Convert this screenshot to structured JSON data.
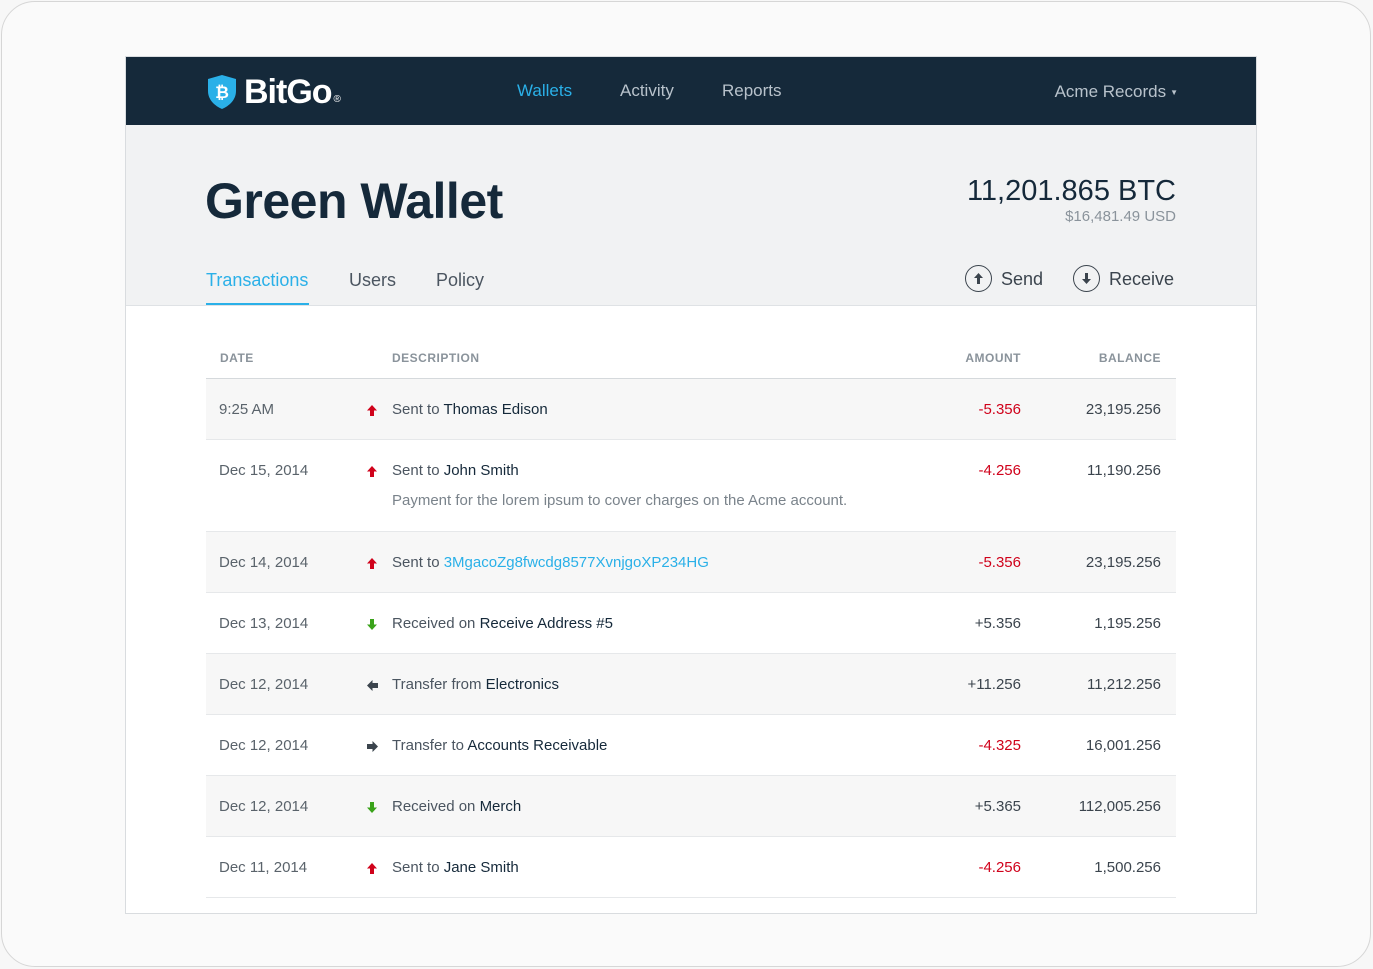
{
  "brand": {
    "name": "BitGo",
    "reg": "®"
  },
  "nav": {
    "items": [
      {
        "label": "Wallets",
        "active": true
      },
      {
        "label": "Activity",
        "active": false
      },
      {
        "label": "Reports",
        "active": false
      }
    ],
    "account": "Acme Records"
  },
  "wallet": {
    "title": "Green Wallet",
    "balance_btc": "11,201.865 BTC",
    "balance_usd": "$16,481.49 USD"
  },
  "tabs": [
    {
      "label": "Transactions",
      "active": true
    },
    {
      "label": "Users",
      "active": false
    },
    {
      "label": "Policy",
      "active": false
    }
  ],
  "actions": {
    "send": "Send",
    "receive": "Receive"
  },
  "table": {
    "headers": {
      "date": "DATE",
      "description": "DESCRIPTION",
      "amount": "AMOUNT",
      "balance": "BALANCE"
    },
    "rows": [
      {
        "date": "9:25 AM",
        "icon": "arrow-up-icon",
        "prefix": "Sent to",
        "target": "Thomas Edison",
        "link": false,
        "note": "",
        "amount": "-5.356",
        "negative": true,
        "balance": "23,195.256"
      },
      {
        "date": "Dec 15, 2014",
        "icon": "arrow-up-icon",
        "prefix": "Sent to",
        "target": "John Smith",
        "link": false,
        "note": "Payment for the lorem ipsum to cover charges on the Acme account.",
        "amount": "-4.256",
        "negative": true,
        "balance": "11,190.256"
      },
      {
        "date": "Dec 14, 2014",
        "icon": "arrow-up-icon",
        "prefix": "Sent to",
        "target": "3MgacoZg8fwcdg8577XvnjgoXP234HG",
        "link": true,
        "note": "",
        "amount": "-5.356",
        "negative": true,
        "balance": "23,195.256"
      },
      {
        "date": "Dec 13, 2014",
        "icon": "arrow-down-icon",
        "prefix": "Received on",
        "target": "Receive Address #5",
        "link": false,
        "note": "",
        "amount": "+5.356",
        "negative": false,
        "balance": "1,195.256"
      },
      {
        "date": "Dec 12, 2014",
        "icon": "arrow-left-icon",
        "prefix": "Transfer from",
        "target": "Electronics",
        "link": false,
        "note": "",
        "amount": "+11.256",
        "negative": false,
        "balance": "11,212.256"
      },
      {
        "date": "Dec 12, 2014",
        "icon": "arrow-right-icon",
        "prefix": "Transfer to",
        "target": "Accounts Receivable",
        "link": false,
        "note": "",
        "amount": "-4.325",
        "negative": true,
        "balance": "16,001.256"
      },
      {
        "date": "Dec 12, 2014",
        "icon": "arrow-down-icon",
        "prefix": "Received on",
        "target": "Merch",
        "link": false,
        "note": "",
        "amount": "+5.365",
        "negative": false,
        "balance": "112,005.256"
      },
      {
        "date": "Dec 11, 2014",
        "icon": "arrow-up-icon",
        "prefix": "Sent to",
        "target": "Jane Smith",
        "link": false,
        "note": "",
        "amount": "-4.256",
        "negative": true,
        "balance": "1,500.256"
      }
    ]
  },
  "colors": {
    "navbar": "#15293a",
    "accent": "#2ab0e8",
    "negative": "#d0021b",
    "sent_arrow": "#d0021b",
    "received_arrow": "#3aa31a",
    "transfer_arrow": "#3b444d"
  }
}
